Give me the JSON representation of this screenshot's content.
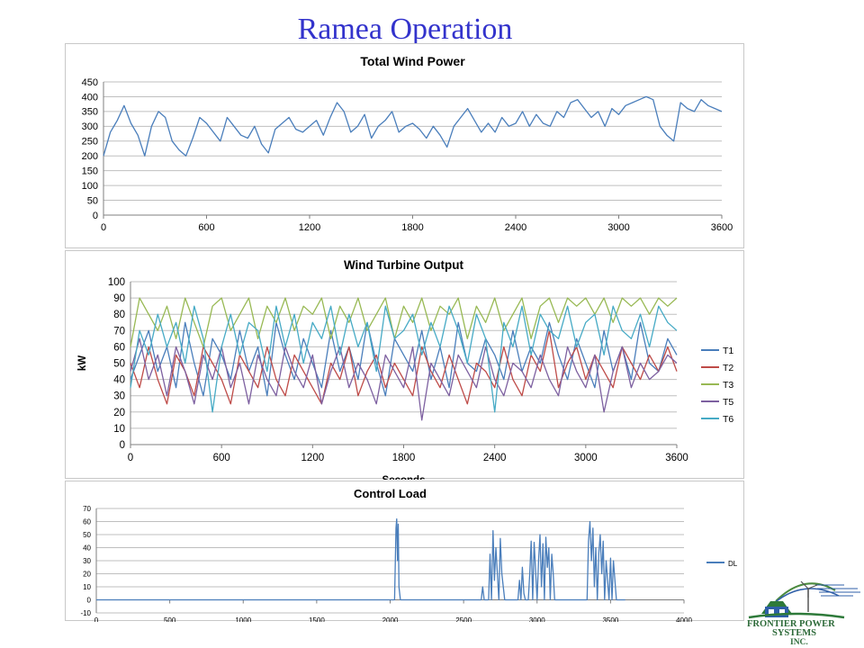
{
  "slide": {
    "title": "Ramea Operation"
  },
  "logo": {
    "line1": "FRONTIER POWER",
    "line2": "SYSTEMS",
    "line3": "INC."
  },
  "colors": {
    "title": "#3333cc",
    "grid": "#bfbfbf",
    "axis": "#7f7f7f"
  },
  "chart_data": [
    {
      "type": "line",
      "title": "Total Wind Power",
      "xlabel": "",
      "ylabel": "",
      "xlim": [
        0,
        3600
      ],
      "ylim": [
        0,
        450
      ],
      "xticks": [
        0,
        600,
        1200,
        1800,
        2400,
        3000,
        3600
      ],
      "yticks": [
        0,
        50,
        100,
        150,
        200,
        250,
        300,
        350,
        400,
        450
      ],
      "grid": true,
      "legend": "none",
      "series": [
        {
          "color": "#4a7ebb",
          "x": [
            0,
            40,
            80,
            120,
            160,
            200,
            240,
            280,
            320,
            360,
            400,
            440,
            480,
            520,
            560,
            600,
            640,
            680,
            720,
            760,
            800,
            840,
            880,
            920,
            960,
            1000,
            1040,
            1080,
            1120,
            1160,
            1200,
            1240,
            1280,
            1320,
            1360,
            1400,
            1440,
            1480,
            1520,
            1560,
            1600,
            1640,
            1680,
            1720,
            1760,
            1800,
            1840,
            1880,
            1920,
            1960,
            2000,
            2040,
            2080,
            2120,
            2160,
            2200,
            2240,
            2280,
            2320,
            2360,
            2400,
            2440,
            2480,
            2520,
            2560,
            2600,
            2640,
            2680,
            2720,
            2760,
            2800,
            2840,
            2880,
            2920,
            2960,
            3000,
            3040,
            3080,
            3120,
            3160,
            3200,
            3240,
            3280,
            3320,
            3360,
            3400,
            3440,
            3480,
            3520,
            3560,
            3600
          ],
          "values": [
            200,
            280,
            320,
            370,
            310,
            270,
            200,
            300,
            350,
            330,
            250,
            220,
            200,
            260,
            330,
            310,
            280,
            250,
            330,
            300,
            270,
            260,
            300,
            240,
            210,
            290,
            310,
            330,
            290,
            280,
            300,
            320,
            270,
            330,
            380,
            350,
            280,
            300,
            340,
            260,
            300,
            320,
            350,
            280,
            300,
            310,
            290,
            260,
            300,
            270,
            230,
            300,
            330,
            360,
            320,
            280,
            310,
            280,
            330,
            300,
            310,
            350,
            300,
            340,
            310,
            300,
            350,
            330,
            380,
            390,
            360,
            330,
            350,
            300,
            360,
            340,
            370,
            380,
            390,
            400,
            390,
            300,
            270,
            250,
            380,
            360,
            350,
            390,
            370,
            360,
            350
          ]
        }
      ]
    },
    {
      "type": "line",
      "title": "Wind Turbine Output",
      "xlabel": "Seconds",
      "ylabel": "kW",
      "xlim": [
        0,
        3600
      ],
      "ylim": [
        0,
        100
      ],
      "xticks": [
        0,
        600,
        1200,
        1800,
        2400,
        3000,
        3600
      ],
      "yticks": [
        0,
        10,
        20,
        30,
        40,
        50,
        60,
        70,
        80,
        90,
        100
      ],
      "grid": true,
      "legend": "right",
      "x": [
        0,
        60,
        120,
        180,
        240,
        300,
        360,
        420,
        480,
        540,
        600,
        660,
        720,
        780,
        840,
        900,
        960,
        1020,
        1080,
        1140,
        1200,
        1260,
        1320,
        1380,
        1440,
        1500,
        1560,
        1620,
        1680,
        1740,
        1800,
        1860,
        1920,
        1980,
        2040,
        2100,
        2160,
        2220,
        2280,
        2340,
        2400,
        2460,
        2520,
        2580,
        2640,
        2700,
        2760,
        2820,
        2880,
        2940,
        3000,
        3060,
        3120,
        3180,
        3240,
        3300,
        3360,
        3420,
        3480,
        3540,
        3600
      ],
      "series": [
        {
          "name": "T1",
          "color": "#4a7ebb",
          "values": [
            40,
            55,
            70,
            45,
            60,
            35,
            75,
            50,
            30,
            65,
            55,
            40,
            70,
            45,
            60,
            30,
            75,
            55,
            40,
            65,
            50,
            35,
            70,
            45,
            60,
            40,
            75,
            50,
            30,
            65,
            55,
            45,
            70,
            40,
            60,
            35,
            75,
            50,
            45,
            65,
            55,
            40,
            70,
            45,
            60,
            50,
            75,
            55,
            40,
            65,
            50,
            35,
            70,
            45,
            60,
            40,
            75,
            50,
            45,
            65,
            55
          ]
        },
        {
          "name": "T2",
          "color": "#be4b48",
          "values": [
            50,
            35,
            60,
            40,
            25,
            55,
            45,
            30,
            60,
            50,
            40,
            25,
            55,
            45,
            35,
            60,
            40,
            30,
            55,
            45,
            35,
            25,
            50,
            40,
            60,
            30,
            45,
            55,
            35,
            50,
            40,
            30,
            60,
            45,
            35,
            55,
            40,
            25,
            50,
            45,
            35,
            60,
            40,
            30,
            55,
            45,
            70,
            35,
            50,
            60,
            40,
            55,
            45,
            35,
            60,
            50,
            40,
            55,
            45,
            60,
            45
          ]
        },
        {
          "name": "T3",
          "color": "#98b954",
          "values": [
            60,
            90,
            80,
            70,
            85,
            65,
            90,
            75,
            60,
            85,
            90,
            70,
            80,
            90,
            65,
            85,
            75,
            90,
            70,
            85,
            80,
            90,
            65,
            85,
            75,
            90,
            70,
            80,
            90,
            65,
            85,
            75,
            90,
            70,
            85,
            80,
            90,
            65,
            85,
            75,
            90,
            70,
            80,
            90,
            65,
            85,
            90,
            75,
            90,
            85,
            90,
            80,
            90,
            75,
            90,
            85,
            90,
            80,
            90,
            85,
            90
          ]
        },
        {
          "name": "T5",
          "color": "#7d60a0",
          "values": [
            45,
            65,
            40,
            55,
            30,
            60,
            45,
            25,
            55,
            40,
            60,
            35,
            50,
            25,
            55,
            40,
            30,
            60,
            45,
            35,
            55,
            25,
            45,
            60,
            35,
            50,
            40,
            25,
            55,
            45,
            35,
            60,
            15,
            50,
            40,
            30,
            55,
            45,
            35,
            60,
            40,
            30,
            50,
            45,
            35,
            55,
            40,
            30,
            60,
            45,
            35,
            55,
            20,
            45,
            60,
            35,
            50,
            40,
            45,
            55,
            50
          ]
        },
        {
          "name": "T6",
          "color": "#46aac5",
          "values": [
            35,
            70,
            55,
            80,
            60,
            75,
            50,
            85,
            65,
            20,
            60,
            80,
            55,
            75,
            70,
            45,
            85,
            60,
            80,
            50,
            75,
            65,
            85,
            55,
            80,
            60,
            75,
            45,
            85,
            65,
            70,
            80,
            55,
            75,
            60,
            85,
            70,
            50,
            80,
            65,
            20,
            75,
            60,
            85,
            55,
            80,
            70,
            65,
            85,
            60,
            75,
            80,
            55,
            85,
            70,
            65,
            80,
            60,
            85,
            75,
            70
          ]
        }
      ]
    },
    {
      "type": "line",
      "title": "Control Load",
      "xlabel": "",
      "ylabel": "",
      "xlim": [
        0,
        4000
      ],
      "ylim": [
        -10,
        70
      ],
      "xticks": [
        0,
        500,
        1000,
        1500,
        2000,
        2500,
        3000,
        3500,
        4000
      ],
      "yticks": [
        -10,
        0,
        10,
        20,
        30,
        40,
        50,
        60,
        70
      ],
      "grid": true,
      "legend": "right",
      "series": [
        {
          "name": "DL",
          "color": "#4a7ebb",
          "x": [
            0,
            2030,
            2040,
            2045,
            2050,
            2055,
            2060,
            2070,
            2620,
            2630,
            2640,
            2670,
            2680,
            2690,
            2700,
            2710,
            2720,
            2740,
            2750,
            2760,
            2780,
            2870,
            2880,
            2890,
            2900,
            2910,
            2920,
            2940,
            2950,
            2960,
            2970,
            2980,
            3000,
            3010,
            3020,
            3030,
            3040,
            3050,
            3060,
            3070,
            3080,
            3090,
            3100,
            3110,
            3120,
            3130,
            3150,
            3340,
            3350,
            3360,
            3370,
            3380,
            3390,
            3400,
            3410,
            3420,
            3430,
            3440,
            3450,
            3460,
            3470,
            3480,
            3490,
            3500,
            3510,
            3520,
            3540,
            3600
          ],
          "values": [
            0,
            0,
            55,
            62,
            30,
            58,
            10,
            0,
            0,
            10,
            0,
            0,
            35,
            0,
            53,
            15,
            40,
            0,
            47,
            20,
            0,
            0,
            15,
            0,
            25,
            5,
            0,
            0,
            20,
            45,
            0,
            44,
            0,
            30,
            50,
            10,
            43,
            0,
            48,
            25,
            40,
            0,
            35,
            20,
            0,
            0,
            0,
            0,
            45,
            60,
            30,
            55,
            10,
            40,
            0,
            35,
            50,
            20,
            45,
            0,
            30,
            15,
            0,
            32,
            0,
            30,
            0,
            0
          ]
        }
      ]
    }
  ]
}
